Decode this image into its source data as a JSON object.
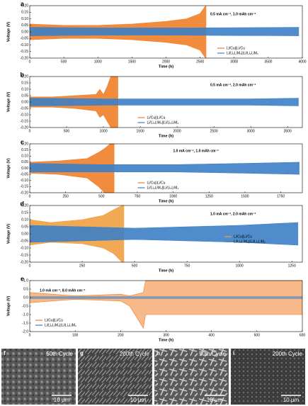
{
  "chart_data": [
    {
      "type": "band",
      "panel": "a",
      "annotation": "0.5 mA cm⁻², 1.0 mAh cm⁻²",
      "annotation_position": "upper right",
      "legend": "lower right",
      "xlabel": "Time (h)",
      "ylabel": "Voltage (V)",
      "xlim": [
        0,
        4000
      ],
      "xticks": [
        0,
        500,
        1000,
        1500,
        2000,
        2500,
        3000,
        3500,
        4000
      ],
      "ylim": [
        -0.2,
        0.2
      ],
      "yticks": [
        {
          "value": -0.2,
          "label": "-0.20"
        },
        {
          "value": -0.15,
          "label": "-0.15"
        },
        {
          "value": -0.1,
          "label": "-0.10"
        },
        {
          "value": -0.05,
          "label": "-0.05"
        },
        {
          "value": 0,
          "label": "0.00"
        },
        {
          "value": 0.05,
          "label": "0.05"
        },
        {
          "value": 0.1,
          "label": "0.10"
        },
        {
          "value": 0.15,
          "label": "0.15"
        },
        {
          "value": 0.2,
          "label": "0.20"
        }
      ],
      "series": [
        {
          "name": "Li/Cu||Li/Cu",
          "color": "#f07f2a",
          "x": [
            0,
            500,
            1000,
            1500,
            2000,
            2300,
            2500,
            2580,
            2590
          ],
          "values": [
            0.06,
            0.05,
            0.05,
            0.06,
            0.08,
            0.1,
            0.14,
            0.2,
            0.2
          ],
          "lower": [
            -0.06,
            -0.05,
            -0.05,
            -0.06,
            -0.08,
            -0.1,
            -0.14,
            -0.2,
            -0.2
          ]
        },
        {
          "name": "Li/Li₂LiM₂||Li/Li₂LiM₂",
          "color": "#3d7fc7",
          "x": [
            0,
            1000,
            2000,
            3000,
            3950
          ],
          "values": [
            0.035,
            0.03,
            0.03,
            0.032,
            0.035
          ],
          "lower": [
            -0.03,
            -0.025,
            -0.025,
            -0.028,
            -0.03
          ]
        }
      ]
    },
    {
      "type": "band",
      "panel": "b",
      "annotation": "0.5 mA cm⁻², 2.0 mAh cm⁻²",
      "annotation_position": "upper right",
      "legend": "lower center",
      "xlabel": "Time (h)",
      "ylabel": "Voltage (V)",
      "xlim": [
        0,
        3700
      ],
      "xticks": [
        0,
        500,
        1000,
        1500,
        2000,
        2500,
        3000,
        3500
      ],
      "ylim": [
        -0.2,
        0.2
      ],
      "yticks": [
        {
          "value": -0.2,
          "label": "-0.20"
        },
        {
          "value": -0.15,
          "label": "-0.15"
        },
        {
          "value": -0.1,
          "label": "-0.10"
        },
        {
          "value": -0.05,
          "label": "-0.05"
        },
        {
          "value": 0,
          "label": "0.00"
        },
        {
          "value": 0.05,
          "label": "0.05"
        },
        {
          "value": 0.1,
          "label": "0.10"
        },
        {
          "value": 0.15,
          "label": "0.15"
        },
        {
          "value": 0.2,
          "label": "0.20"
        }
      ],
      "series": [
        {
          "name": "Li/Cu||Li/Cu",
          "color": "#f07f2a",
          "x": [
            0,
            300,
            600,
            900,
            950,
            1000,
            1050,
            1100,
            1150,
            1200
          ],
          "values": [
            0.04,
            0.04,
            0.05,
            0.06,
            0.1,
            0.06,
            0.12,
            0.2,
            0.2,
            0.2
          ],
          "lower": [
            -0.04,
            -0.04,
            -0.05,
            -0.07,
            -0.12,
            -0.1,
            -0.15,
            -0.2,
            -0.2,
            -0.2
          ]
        },
        {
          "name": "Li/Li₂LiM₂||Li/Li₂LiM₂",
          "color": "#3d7fc7",
          "x": [
            0,
            1000,
            2000,
            3000,
            3650
          ],
          "values": [
            0.03,
            0.025,
            0.025,
            0.025,
            0.03
          ],
          "lower": [
            -0.03,
            -0.025,
            -0.025,
            -0.025,
            -0.03
          ]
        }
      ]
    },
    {
      "type": "band",
      "panel": "c",
      "annotation": "1.0 mA cm⁻², 1.0 mAh cm⁻²",
      "annotation_position": "upper center",
      "legend": "lower center",
      "xlabel": "Time (h)",
      "ylabel": "Voltage (V)",
      "xlim": [
        0,
        1900
      ],
      "xticks": [
        0,
        250,
        500,
        750,
        1000,
        1250,
        1500,
        1750
      ],
      "ylim": [
        -0.2,
        0.2
      ],
      "yticks": [
        {
          "value": -0.2,
          "label": "-0.20"
        },
        {
          "value": -0.15,
          "label": "-0.15"
        },
        {
          "value": -0.1,
          "label": "-0.10"
        },
        {
          "value": -0.05,
          "label": "-0.05"
        },
        {
          "value": 0,
          "label": "0.00"
        },
        {
          "value": 0.05,
          "label": "0.05"
        },
        {
          "value": 0.1,
          "label": "0.10"
        },
        {
          "value": 0.15,
          "label": "0.15"
        },
        {
          "value": 0.2,
          "label": "0.20"
        }
      ],
      "series": [
        {
          "name": "Li/Cu||Li/Cu",
          "color": "#f07f2a",
          "x": [
            0,
            200,
            400,
            480,
            520,
            560,
            590
          ],
          "values": [
            0.05,
            0.06,
            0.08,
            0.13,
            0.16,
            0.2,
            0.2
          ],
          "lower": [
            -0.04,
            -0.05,
            -0.08,
            -0.15,
            -0.2,
            -0.2,
            -0.2
          ]
        },
        {
          "name": "Li/Li₂LiM₂||Li/Li₂LiM₂",
          "color": "#3d7fc7",
          "x": [
            0,
            500,
            1000,
            1500,
            1880
          ],
          "values": [
            0.04,
            0.03,
            0.03,
            0.04,
            0.05
          ],
          "lower": [
            -0.03,
            -0.03,
            -0.03,
            -0.04,
            -0.05
          ]
        }
      ]
    },
    {
      "type": "band",
      "panel": "d",
      "annotation": "1.0 mA cm⁻², 2.0 mAh cm⁻²",
      "annotation_position": "upper right",
      "legend": "center right",
      "xlabel": "Time (h)",
      "ylabel": "Voltage (V)",
      "xlim": [
        0,
        1300
      ],
      "xticks": [
        0,
        250,
        500,
        750,
        1000,
        1250
      ],
      "ylim": [
        -0.2,
        0.2
      ],
      "yticks": [
        {
          "value": -0.2,
          "label": "-0.20"
        },
        {
          "value": -0.15,
          "label": "-0.15"
        },
        {
          "value": -0.1,
          "label": "-0.10"
        },
        {
          "value": -0.05,
          "label": "-0.05"
        },
        {
          "value": 0,
          "label": "0.00"
        },
        {
          "value": 0.05,
          "label": "0.05"
        },
        {
          "value": 0.1,
          "label": "0.10"
        },
        {
          "value": 0.15,
          "label": "0.15"
        },
        {
          "value": 0.2,
          "label": "0.20"
        }
      ],
      "series": [
        {
          "name": "Li/Cu||Li/Cu",
          "color": "#f0a040",
          "x": [
            0,
            100,
            250,
            350,
            400,
            440,
            450
          ],
          "values": [
            0.1,
            0.08,
            0.1,
            0.13,
            0.17,
            0.2,
            0.2
          ],
          "lower": [
            -0.08,
            -0.06,
            -0.07,
            -0.1,
            -0.14,
            -0.2,
            -0.2
          ]
        },
        {
          "name": "Li/Li₂LiM₂||Li/Li₂LiM₂",
          "color": "#3d7fc7",
          "x": [
            0,
            250,
            500,
            750,
            1000,
            1280
          ],
          "values": [
            0.06,
            0.05,
            0.04,
            0.05,
            0.06,
            0.08
          ],
          "lower": [
            -0.06,
            -0.05,
            -0.04,
            -0.05,
            -0.06,
            -0.08
          ]
        }
      ]
    },
    {
      "type": "band",
      "panel": "e",
      "annotation": "1.0 mA cm⁻², 8.0 mAh cm⁻²",
      "annotation_position": "upper left",
      "legend": "lower left",
      "xlabel": "Time (h)",
      "ylabel": "Voltage (V)",
      "xlim": [
        0,
        600
      ],
      "xticks": [
        0,
        100,
        200,
        300,
        400,
        500,
        600
      ],
      "ylim": [
        -2,
        1
      ],
      "yticks": [
        {
          "value": -2,
          "label": "-2.0"
        },
        {
          "value": -1.5,
          "label": "-1.5"
        },
        {
          "value": -1,
          "label": "-1.0"
        },
        {
          "value": -0.5,
          "label": "-0.5"
        },
        {
          "value": 0,
          "label": "0.0"
        },
        {
          "value": 0.5,
          "label": "0.5"
        },
        {
          "value": 1,
          "label": "1.0"
        }
      ],
      "series": [
        {
          "name": "Li/Cu||Li/Cu",
          "color": "#f07f2a",
          "x": [
            0,
            100,
            200,
            220,
            250,
            255,
            400,
            600
          ],
          "values": [
            0.3,
            0.1,
            0.2,
            0.1,
            0.3,
            1,
            1,
            1
          ],
          "lower": [
            -0.3,
            -0.1,
            -0.2,
            -0.5,
            -1.8,
            -1,
            -1,
            -1
          ]
        },
        {
          "name": "Li/Li₂LiM₂||Li/Li₂LiM₂",
          "color": "#3d7fc7",
          "x": [
            0,
            600
          ],
          "values": [
            0.05,
            0.05
          ],
          "lower": [
            -0.05,
            -0.05
          ]
        }
      ]
    }
  ],
  "images": [
    {
      "panel": "f",
      "label": "50th Cycle",
      "scale": "10 μm"
    },
    {
      "panel": "g",
      "label": "200th Cycle",
      "scale": "10 μm"
    },
    {
      "panel": "h",
      "label": "50th Cycle",
      "scale": "10 μm"
    },
    {
      "panel": "i",
      "label": "200th Cycle",
      "scale": "10 μm"
    }
  ]
}
